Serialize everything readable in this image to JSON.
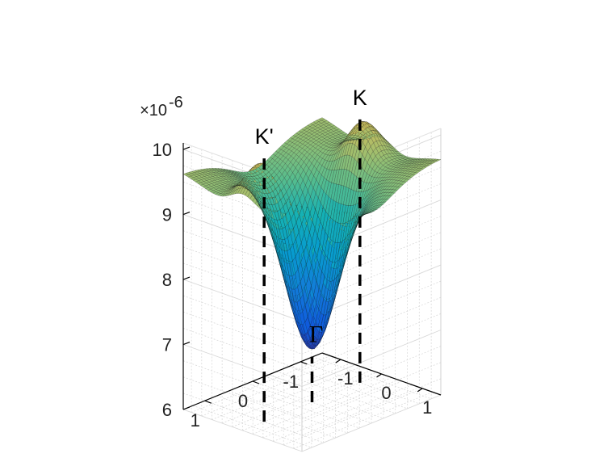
{
  "chart_data": {
    "type": "surface",
    "title": "",
    "xlabel": "",
    "ylabel": "",
    "zlabel": "",
    "colormap": "parula",
    "grid": true,
    "xlim": [
      -1.45,
      1.45
    ],
    "ylim": [
      -1.45,
      1.45
    ],
    "zlim": [
      6,
      10.1
    ],
    "zscale_factor_label": "×10",
    "zscale_factor_exponent": "-6",
    "x_ticks": [
      {
        "value": -1,
        "label": "-1"
      },
      {
        "value": 0,
        "label": "0"
      },
      {
        "value": 1,
        "label": "1"
      }
    ],
    "y_ticks": [
      {
        "value": -1,
        "label": "-1"
      },
      {
        "value": 0,
        "label": "0"
      },
      {
        "value": 1,
        "label": "1"
      }
    ],
    "z_ticks": [
      {
        "value": 6,
        "label": "6"
      },
      {
        "value": 7,
        "label": "7"
      },
      {
        "value": 8,
        "label": "8"
      },
      {
        "value": 9,
        "label": "9"
      },
      {
        "value": 10,
        "label": "10"
      }
    ],
    "surface": {
      "description": "Energy surface in the 2D Brillouin zone with a central minimum at Γ (about 6.7) and maxima near K and K' (about 10.1).",
      "min_point": {
        "x": 0,
        "y": 0,
        "z": 6.7
      },
      "max_points": [
        {
          "x": -1.0,
          "y": 0.0,
          "z": 10.15
        },
        {
          "x": 1.0,
          "y": 0.0,
          "z": 10.15
        }
      ],
      "edge_level": 9.35
    },
    "annotations": [
      {
        "id": "K",
        "text": "K",
        "x": -1.0,
        "y": 0.0,
        "z": 10.15
      },
      {
        "id": "Gamma",
        "text": "Γ",
        "x": 0.0,
        "y": 0.0,
        "z": 6.7
      },
      {
        "id": "Kprime",
        "text": "K'",
        "x": 1.0,
        "y": 0.0,
        "z": 10.15
      }
    ]
  }
}
